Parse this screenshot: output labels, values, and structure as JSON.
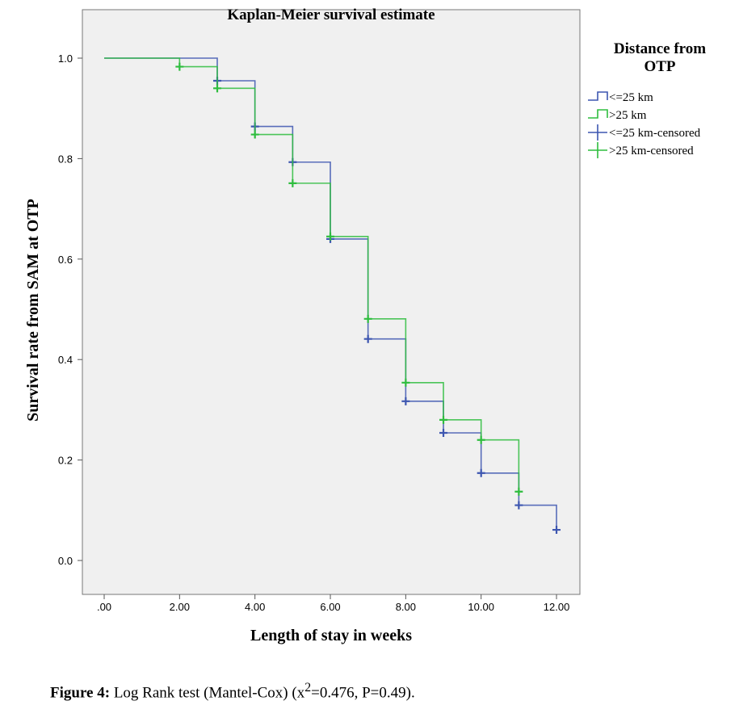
{
  "chart_data": {
    "type": "line",
    "subtype": "kaplan-meier step",
    "title": "Kaplan-Meier survival estimate",
    "xlabel": "Length of stay in weeks",
    "ylabel": "Survival rate from SAM at OTP",
    "xlim": [
      0,
      12
    ],
    "ylim": [
      0,
      1.0
    ],
    "xticks": [
      ".00",
      "2.00",
      "4.00",
      "6.00",
      "8.00",
      "10.00",
      "12.00"
    ],
    "xtick_values": [
      0,
      2,
      4,
      6,
      8,
      10,
      12
    ],
    "yticks": [
      "0.0",
      "0.2",
      "0.4",
      "0.6",
      "0.8",
      "1.0"
    ],
    "ytick_values": [
      0,
      0.2,
      0.4,
      0.6,
      0.8,
      1.0
    ],
    "grid": false,
    "legend_title": "Distance from OTP",
    "legend_position": "right",
    "legend": [
      "<=25 km",
      ">25 km",
      "<=25 km-censored",
      ">25 km-censored"
    ],
    "series": [
      {
        "name": "<=25 km",
        "color": "#3d56b0",
        "times": [
          0,
          3,
          4,
          5,
          6,
          7,
          8,
          9,
          10,
          11,
          12
        ],
        "survival": [
          1.0,
          0.955,
          0.864,
          0.793,
          0.64,
          0.441,
          0.317,
          0.254,
          0.174,
          0.11,
          0.061
        ],
        "censored": [
          [
            3,
            0.955
          ],
          [
            4,
            0.864
          ],
          [
            5,
            0.793
          ],
          [
            6,
            0.64
          ],
          [
            7,
            0.441
          ],
          [
            8,
            0.317
          ],
          [
            9,
            0.254
          ],
          [
            10,
            0.174
          ],
          [
            11,
            0.11
          ],
          [
            12,
            0.061
          ]
        ]
      },
      {
        "name": ">25 km",
        "color": "#2ebd3e",
        "times": [
          0,
          2,
          3,
          4,
          5,
          6,
          7,
          8,
          9,
          10,
          11
        ],
        "survival": [
          1.0,
          0.983,
          0.94,
          0.848,
          0.751,
          0.645,
          0.481,
          0.354,
          0.28,
          0.24,
          0.137
        ],
        "censored": [
          [
            2,
            0.983
          ],
          [
            3,
            0.94
          ],
          [
            4,
            0.848
          ],
          [
            5,
            0.751
          ],
          [
            6,
            0.645
          ],
          [
            7,
            0.481
          ],
          [
            8,
            0.354
          ],
          [
            9,
            0.28
          ],
          [
            10,
            0.24
          ],
          [
            11,
            0.137
          ]
        ]
      }
    ]
  },
  "caption": {
    "label": "Figure 4:",
    "text_before": " Log Rank test (Mantel-Cox) (x",
    "sup": "2",
    "text_after": "=0.476, P=0.49)."
  }
}
